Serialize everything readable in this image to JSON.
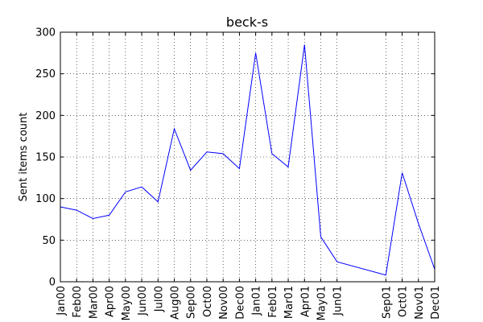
{
  "chart_data": {
    "type": "line",
    "title": "beck-s",
    "xlabel": "",
    "ylabel": "Sent items count",
    "x": [
      "Jan00",
      "Feb00",
      "Mar00",
      "Apr00",
      "May00",
      "Jun00",
      "Jul00",
      "Aug00",
      "Sep00",
      "Oct00",
      "Nov00",
      "Dec00",
      "Jan01",
      "Feb01",
      "Mar01",
      "Apr01",
      "May01",
      "Jun01",
      "Sep01",
      "Oct01",
      "Nov01",
      "Dec01"
    ],
    "x_month_index": [
      0,
      1,
      2,
      3,
      4,
      5,
      6,
      7,
      8,
      9,
      10,
      11,
      12,
      13,
      14,
      15,
      16,
      17,
      20,
      21,
      22,
      23
    ],
    "series": [
      {
        "values": [
          90,
          86,
          76,
          80,
          108,
          114,
          96,
          184,
          134,
          156,
          154,
          136,
          275,
          154,
          138,
          285,
          54,
          24,
          8,
          131,
          70,
          15
        ]
      }
    ],
    "ylim": [
      0,
      300
    ],
    "yticks": [
      0,
      50,
      100,
      150,
      200,
      250,
      300
    ],
    "grid": true,
    "line_color": "#0000ff"
  }
}
